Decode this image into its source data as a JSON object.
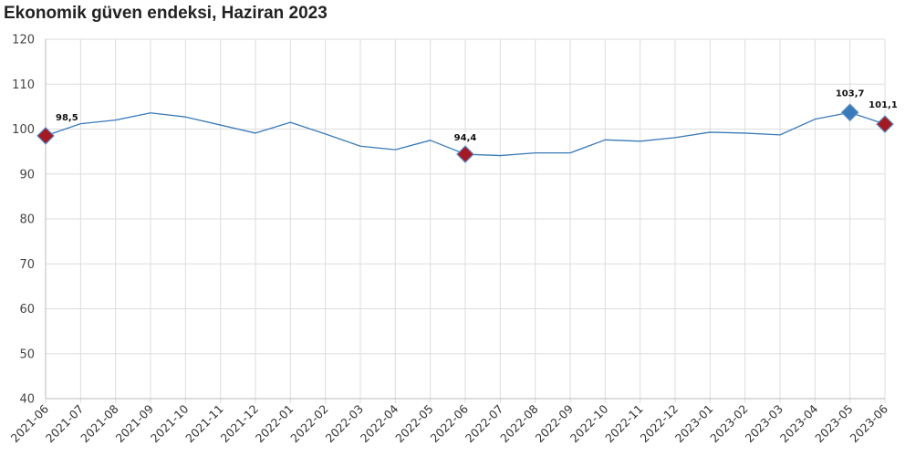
{
  "chart_data": {
    "type": "line",
    "title": "Ekonomik güven endeksi, Haziran 2023",
    "xlabel": "",
    "ylabel": "",
    "ylim": [
      40,
      120
    ],
    "yticks": [
      40,
      50,
      60,
      70,
      80,
      90,
      100,
      110,
      120
    ],
    "grid": true,
    "legend": "none",
    "categories": [
      "2021-06",
      "2021-07",
      "2021-08",
      "2021-09",
      "2021-10",
      "2021-11",
      "2021-12",
      "2022-01",
      "2022-02",
      "2022-03",
      "2022-04",
      "2022-05",
      "2022-06",
      "2022-07",
      "2022-08",
      "2022-09",
      "2022-10",
      "2022-11",
      "2022-12",
      "2023-01",
      "2023-02",
      "2023-03",
      "2023-04",
      "2023-05",
      "2023-06"
    ],
    "values": [
      98.5,
      101.2,
      102.0,
      103.6,
      102.7,
      100.9,
      99.1,
      101.5,
      98.9,
      96.2,
      95.4,
      97.5,
      94.4,
      94.1,
      94.7,
      94.7,
      97.6,
      97.3,
      98.1,
      99.3,
      99.1,
      98.7,
      102.2,
      103.7,
      101.1
    ],
    "line_color": "#3a7ab8",
    "annotations": [
      {
        "category": "2021-06",
        "value": 98.5,
        "label": "98,5",
        "marker": "diamond",
        "color": "#a31924"
      },
      {
        "category": "2022-06",
        "value": 94.4,
        "label": "94,4",
        "marker": "diamond",
        "color": "#a31924"
      },
      {
        "category": "2023-05",
        "value": 103.7,
        "label": "103,7",
        "marker": "diamond",
        "color": "#3a7ab8"
      },
      {
        "category": "2023-06",
        "value": 101.1,
        "label": "101,1",
        "marker": "diamond",
        "color": "#a31924"
      }
    ]
  }
}
